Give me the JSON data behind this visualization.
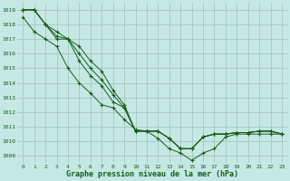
{
  "xlabel": "Graphe pression niveau de la mer (hPa)",
  "background_color": "#c5e8e5",
  "grid_color": "#a0c0be",
  "line_color": "#1a5c1a",
  "marker": "+",
  "ylim_min": 1008.5,
  "ylim_max": 1019.5,
  "xlim_min": -0.5,
  "xlim_max": 23.5,
  "yticks": [
    1009,
    1010,
    1011,
    1012,
    1013,
    1014,
    1015,
    1016,
    1017,
    1018,
    1019
  ],
  "xticks": [
    0,
    1,
    2,
    3,
    4,
    5,
    6,
    7,
    8,
    9,
    10,
    11,
    12,
    13,
    14,
    15,
    16,
    17,
    18,
    19,
    20,
    21,
    22,
    23
  ],
  "lines": [
    [
      1019.0,
      1019.0,
      1018.0,
      1017.5,
      1017.0,
      1016.5,
      1015.5,
      1014.8,
      1013.5,
      1012.5,
      1010.7,
      1010.7,
      1010.7,
      1010.2,
      1009.5,
      1009.5,
      1010.3,
      1010.5,
      1010.5,
      1010.6,
      1010.6,
      1010.7,
      1010.7,
      1010.5
    ],
    [
      1019.0,
      1019.0,
      1018.0,
      1017.2,
      1017.0,
      1016.0,
      1015.0,
      1014.2,
      1013.2,
      1012.3,
      1010.7,
      1010.7,
      1010.7,
      1010.2,
      1009.5,
      1009.5,
      1010.3,
      1010.5,
      1010.5,
      1010.6,
      1010.6,
      1010.7,
      1010.7,
      1010.5
    ],
    [
      1019.0,
      1019.0,
      1018.0,
      1017.0,
      1017.0,
      1015.5,
      1014.5,
      1013.8,
      1012.7,
      1012.3,
      1010.7,
      1010.7,
      1010.7,
      1010.2,
      1009.5,
      1009.5,
      1010.3,
      1010.5,
      1010.5,
      1010.6,
      1010.6,
      1010.7,
      1010.7,
      1010.5
    ],
    [
      1018.5,
      1017.5,
      1017.0,
      1016.5,
      1015.0,
      1014.0,
      1013.3,
      1012.5,
      1012.3,
      1011.5,
      1010.8,
      1010.7,
      1010.2,
      1009.5,
      1009.2,
      1008.7,
      1009.2,
      1009.5,
      1010.3,
      1010.5,
      1010.5,
      1010.5,
      1010.5,
      1010.5
    ]
  ],
  "figwidth": 3.2,
  "figheight": 2.0,
  "dpi": 100
}
